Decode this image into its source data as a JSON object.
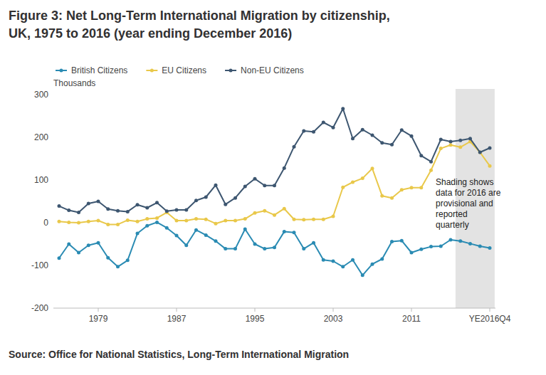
{
  "chart_data": {
    "type": "line",
    "title": "Figure 3: Net Long-Term International Migration by citizenship, UK, 1975 to 2016 (year ending December 2016)",
    "y_label": "Thousands",
    "source": "Source: Office for National Statistics, Long-Term International Migration",
    "annotations": [
      {
        "text": "Shading shows data for 2016 are provisional and reported quarterly",
        "x": [
          41,
          44
        ]
      }
    ],
    "categories": [
      null,
      null,
      null,
      null,
      "1979",
      null,
      null,
      null,
      null,
      null,
      null,
      null,
      "1987",
      null,
      null,
      null,
      null,
      null,
      null,
      null,
      "1995",
      null,
      null,
      null,
      null,
      null,
      null,
      null,
      "2003",
      null,
      null,
      null,
      null,
      null,
      null,
      null,
      "2011",
      null,
      null,
      null,
      null,
      null,
      null,
      null,
      "YE2016Q4"
    ],
    "series": [
      {
        "name": "British Citizens",
        "color": "#2a8bb3",
        "marker": "circle",
        "values": [
          -83,
          -50,
          -70,
          -53,
          -47,
          -82,
          -103,
          -88,
          -25,
          -7,
          1,
          -12,
          -30,
          -53,
          -17,
          -29,
          -43,
          -61,
          -61,
          -15,
          -50,
          -61,
          -58,
          -21,
          -23,
          -61,
          -47,
          -87,
          -90,
          -103,
          -87,
          -123,
          -97,
          -85,
          -44,
          -42,
          -70,
          -62,
          -56,
          -55,
          -40,
          -43,
          -49,
          -55,
          -59
        ]
      },
      {
        "name": "EU Citizens",
        "color": "#e9c84a",
        "marker": "circle",
        "values": [
          3,
          1,
          0,
          3,
          5,
          -4,
          -4,
          6,
          3,
          9,
          11,
          24,
          5,
          5,
          9,
          8,
          -2,
          5,
          5,
          9,
          23,
          28,
          18,
          33,
          8,
          7,
          8,
          8,
          15,
          83,
          95,
          104,
          127,
          63,
          58,
          77,
          82,
          82,
          123,
          174,
          182,
          177,
          190,
          165,
          133
        ]
      },
      {
        "name": "Non-EU Citizens",
        "color": "#3d5670",
        "marker": "circle",
        "values": [
          39,
          29,
          24,
          45,
          50,
          32,
          28,
          26,
          42,
          35,
          47,
          27,
          30,
          30,
          52,
          60,
          88,
          43,
          58,
          85,
          103,
          87,
          87,
          128,
          178,
          215,
          213,
          235,
          223,
          267,
          197,
          218,
          205,
          187,
          183,
          217,
          203,
          157,
          143,
          195,
          190,
          193,
          197,
          165,
          175
        ]
      }
    ],
    "ylim": [
      -200,
      300
    ],
    "yticks": [
      -200,
      -100,
      0,
      100,
      200,
      300
    ],
    "grid": false,
    "legend": "top-left"
  }
}
